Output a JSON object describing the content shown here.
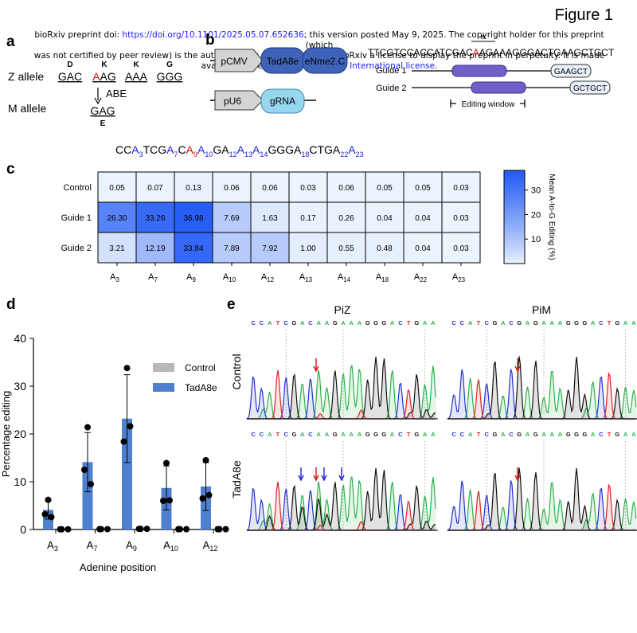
{
  "figure_title": "Figure 1",
  "preprint_notice": {
    "line1_prefix": "bioRxiv preprint doi: ",
    "doi": "https://doi.org/10.1101/2025.05.07.652636",
    "line1_suffix": "; this version posted May 9, 2025. The copyright holder for this preprint (which",
    "line2": "was not certified by peer review) is the author/funder, who has granted bioRxiv a license to display the preprint in perpetuity. It is made",
    "line3_prefix": "available under a",
    "license": "CC-BY-NC-ND 4.0 International license",
    "line3_suffix": "."
  },
  "panel_a": {
    "label": "a",
    "aa_top": [
      "D",
      "K",
      "K",
      "G"
    ],
    "z_label": "Z allele",
    "codons": [
      "GAC",
      "AAG",
      "AAA",
      "GGG"
    ],
    "edit_base": "A",
    "edit_rest": "AG",
    "arrow_label": "ABE",
    "m_label": "M allele",
    "m_codon": "GAG",
    "m_aa": "E"
  },
  "panel_b": {
    "label": "b",
    "promoter1": "pCMV",
    "box1": "TadA8e",
    "box2": "eNme2.C",
    "promoter2": "pU6",
    "box3": "gRNA",
    "k_label": "K",
    "seq_prefix": "TTCGTCCACCATCGAC",
    "seq_red": "A",
    "seq_suffix": "AGAAAGGGACTGAAGCTGCT",
    "guide1_label": "Guide 1",
    "guide1_pam": "GAAGCT",
    "guide2_label": "Guide 2",
    "guide2_pam": "GCTGCT",
    "window_label": "Editing window"
  },
  "panel_c": {
    "label": "c",
    "sequence_parts": [
      {
        "t": "CC",
        "c": "k"
      },
      {
        "t": "A",
        "c": "b"
      },
      {
        "t": "3",
        "c": "bs"
      },
      {
        "t": "TCG",
        "c": "k"
      },
      {
        "t": "A",
        "c": "b"
      },
      {
        "t": "7",
        "c": "bs"
      },
      {
        "t": "C",
        "c": "k"
      },
      {
        "t": "A",
        "c": "r"
      },
      {
        "t": "9",
        "c": "rs"
      },
      {
        "t": "A",
        "c": "b"
      },
      {
        "t": "10",
        "c": "bs"
      },
      {
        "t": "GA",
        "c": "k"
      },
      {
        "t": "12",
        "c": "bs"
      },
      {
        "t": "A",
        "c": "b"
      },
      {
        "t": "13",
        "c": "bs"
      },
      {
        "t": "A",
        "c": "b"
      },
      {
        "t": "14",
        "c": "bs"
      },
      {
        "t": "GGGA",
        "c": "k"
      },
      {
        "t": "18",
        "c": "bs"
      },
      {
        "t": "CTGA",
        "c": "k"
      },
      {
        "t": "22",
        "c": "bs"
      },
      {
        "t": "A",
        "c": "b"
      },
      {
        "t": "23",
        "c": "bs"
      }
    ]
  },
  "panel_d": {
    "label": "d"
  },
  "panel_e": {
    "label": "e",
    "col1": "PiZ",
    "col2": "PiM",
    "row1": "Control",
    "row2": "TadA8e",
    "seq_piz": [
      "C",
      "C",
      "A",
      "T",
      "C",
      "G",
      "A",
      "C",
      "A",
      "A",
      "G",
      "A",
      "A",
      "A",
      "G",
      "G",
      "G",
      "A",
      "C",
      "T",
      "G",
      "A",
      "A"
    ],
    "seq_pim": [
      "C",
      "C",
      "A",
      "T",
      "C",
      "G",
      "A",
      "C",
      "G",
      "A",
      "G",
      "A",
      "A",
      "A",
      "G",
      "G",
      "G",
      "A",
      "C",
      "T",
      "G",
      "A",
      "A"
    ]
  },
  "colors": {
    "A": "#2ab24a",
    "C": "#2233cc",
    "G": "#111111",
    "T": "#dd2222",
    "bar_blue": "#4f7fcf",
    "bar_gray": "#b8b8b8",
    "red_arrow": "#dd1111",
    "blue_arrow": "#2222dd"
  },
  "chart_data": [
    {
      "type": "heatmap",
      "rows": [
        "Control",
        "Guide 1",
        "Guide 2"
      ],
      "x_base": "A",
      "x_subs": [
        "3",
        "7",
        "9",
        "10",
        "12",
        "13",
        "14",
        "18",
        "22",
        "23"
      ],
      "values": [
        [
          0.05,
          0.07,
          0.13,
          0.06,
          0.06,
          0.03,
          0.06,
          0.05,
          0.05,
          0.03
        ],
        [
          26.3,
          33.26,
          36.98,
          7.69,
          1.63,
          0.17,
          0.26,
          0.04,
          0.04,
          0.03
        ],
        [
          3.21,
          12.19,
          33.84,
          7.89,
          7.92,
          1.0,
          0.55,
          0.48,
          0.04,
          0.03
        ]
      ],
      "value_labels": [
        [
          "0.05",
          "0.07",
          "0.13",
          "0.06",
          "0.06",
          "0.03",
          "0.06",
          "0.05",
          "0.05",
          "0.03"
        ],
        [
          "26.30",
          "33.26",
          "36.98",
          "7.69",
          "1.63",
          "0.17",
          "0.26",
          "0.04",
          "0.04",
          "0.03"
        ],
        [
          "3.21",
          "12.19",
          "33.84",
          "7.89",
          "7.92",
          "1.00",
          "0.55",
          "0.48",
          "0.04",
          "0.03"
        ]
      ],
      "colorbar_label": "Mean A-to-G Editing (%)",
      "colorbar_ticks": [
        10,
        20,
        30
      ],
      "colorbar_range": [
        0,
        38
      ]
    },
    {
      "type": "bar",
      "categories_base": "A",
      "categories_subs": [
        "3",
        "7",
        "9",
        "10",
        "12"
      ],
      "xlabel": "Adenine position",
      "ylabel": "Percentage editing",
      "ylim": [
        0,
        40
      ],
      "yticks": [
        0,
        10,
        20,
        30,
        40
      ],
      "legend": "right",
      "series": [
        {
          "name": "TadA8e",
          "values": [
            4.1,
            14.1,
            23.2,
            8.7,
            9.0
          ],
          "sd": [
            1.9,
            6.2,
            9.2,
            4.6,
            5.0
          ],
          "points": [
            [
              6.2,
              3.2,
              2.6
            ],
            [
              21.4,
              12.5,
              9.5
            ],
            [
              33.8,
              18.4,
              21.6
            ],
            [
              13.9,
              6.0,
              6.1
            ],
            [
              14.5,
              6.5,
              7.2
            ]
          ]
        },
        {
          "name": "Control",
          "values": [
            0.05,
            0.07,
            0.13,
            0.06,
            0.06
          ],
          "sd": [
            0,
            0,
            0,
            0,
            0
          ],
          "points": [
            [
              0.05,
              0.05,
              0.05
            ],
            [
              0.07,
              0.07,
              0.07
            ],
            [
              0.13,
              0.13,
              0.13
            ],
            [
              0.06,
              0.06,
              0.06
            ],
            [
              0.06,
              0.06,
              0.06
            ]
          ]
        }
      ]
    }
  ]
}
